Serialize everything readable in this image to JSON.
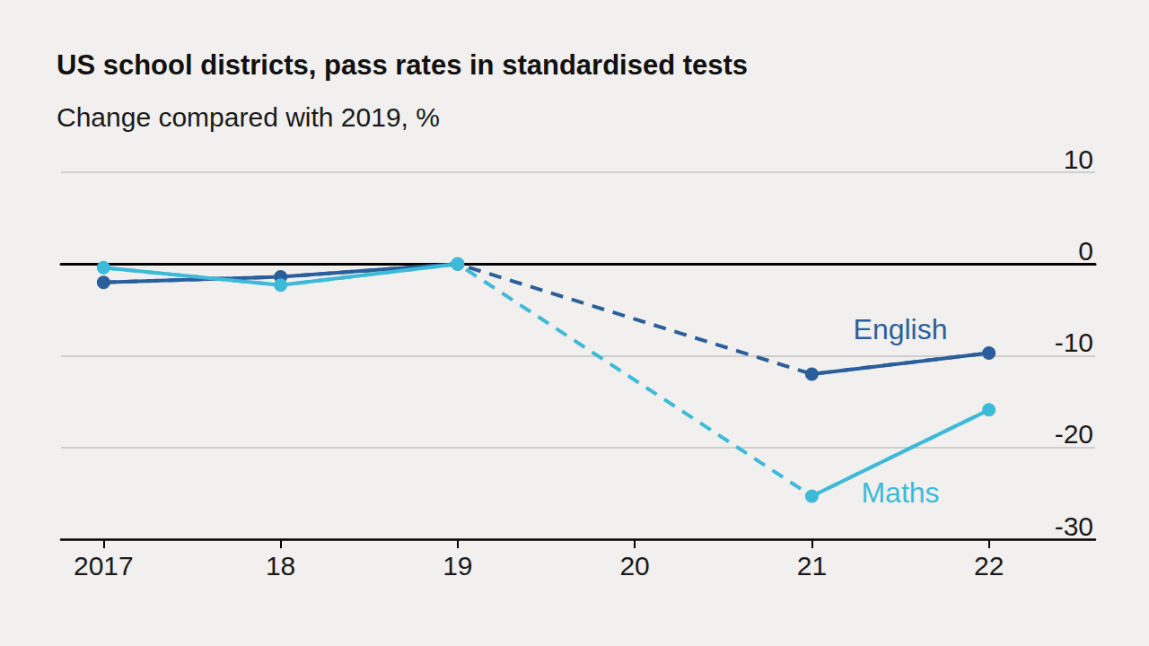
{
  "chart_data": {
    "type": "line",
    "title": "US school districts, pass rates in standardised tests",
    "subtitle": "Change compared with 2019, %",
    "x": [
      2017,
      2018,
      2019,
      2020,
      2021,
      2022
    ],
    "xlim": [
      2016.76,
      2022.6
    ],
    "xticks": [
      2017,
      {
        "value": 2018,
        "label": "18"
      },
      {
        "value": 2019,
        "label": "19"
      },
      {
        "value": 2020,
        "label": "20"
      },
      {
        "value": 2021,
        "label": "21"
      },
      {
        "value": 2022,
        "label": "22"
      }
    ],
    "ylim": [
      -30,
      10
    ],
    "yticks": [
      -30,
      -20,
      -10,
      0,
      10
    ],
    "grid": true,
    "series": [
      {
        "name": "English",
        "color": "#2b5f9c",
        "values": [
          -2,
          -1.4,
          0,
          null,
          -12,
          -9.7
        ]
      },
      {
        "name": "Maths",
        "color": "#3dbad8",
        "values": [
          -0.4,
          -2.3,
          0,
          null,
          -25.3,
          -15.9
        ]
      }
    ]
  }
}
